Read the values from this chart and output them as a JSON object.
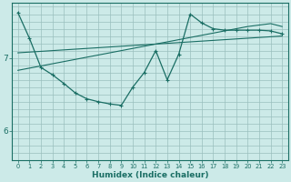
{
  "xlabel": "Humidex (Indice chaleur)",
  "background_color": "#cceae8",
  "grid_color": "#9abfbe",
  "line_color": "#1a6e64",
  "x_ticks": [
    0,
    1,
    2,
    3,
    4,
    5,
    6,
    7,
    8,
    9,
    10,
    11,
    12,
    13,
    14,
    15,
    16,
    17,
    18,
    19,
    20,
    21,
    22,
    23
  ],
  "yticks": [
    6,
    7
  ],
  "ylim": [
    5.6,
    7.75
  ],
  "xlim": [
    -0.5,
    23.5
  ],
  "line1_y": [
    7.62,
    7.27,
    6.87,
    6.77,
    6.65,
    6.52,
    6.44,
    6.4,
    6.37,
    6.35,
    6.6,
    6.8,
    7.1,
    6.7,
    7.05,
    7.6,
    7.48,
    7.4,
    7.38,
    7.38,
    7.38,
    7.38,
    7.37,
    7.33
  ],
  "line2_y": [
    6.83,
    6.86,
    6.89,
    6.92,
    6.95,
    6.98,
    7.01,
    7.04,
    7.07,
    7.1,
    7.13,
    7.16,
    7.19,
    7.22,
    7.25,
    7.28,
    7.31,
    7.34,
    7.37,
    7.4,
    7.43,
    7.45,
    7.47,
    7.43
  ],
  "line3_y": [
    7.07,
    7.08,
    7.09,
    7.1,
    7.11,
    7.12,
    7.13,
    7.14,
    7.15,
    7.16,
    7.17,
    7.18,
    7.19,
    7.2,
    7.21,
    7.22,
    7.23,
    7.24,
    7.25,
    7.26,
    7.27,
    7.28,
    7.29,
    7.3
  ]
}
